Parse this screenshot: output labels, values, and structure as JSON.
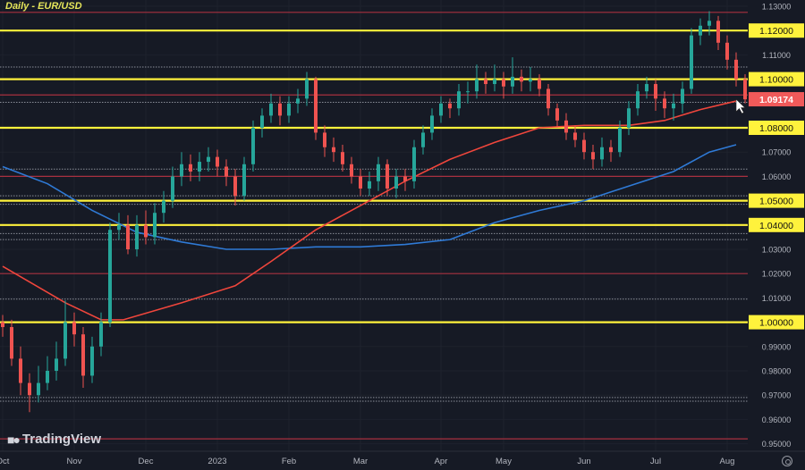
{
  "title": "Daily - EUR/USD",
  "branding": "TradingView",
  "colors": {
    "background": "#161a25",
    "up": "#26a69a",
    "down": "#ef5350",
    "support": "#fff23c",
    "resistance_red": "#a8303f",
    "ma_red": "#f0463c",
    "ma_blue": "#2f7ad6",
    "dotted": "#8b8f99",
    "last_price_bg": "#f05a5a"
  },
  "chart_data": {
    "type": "candlestick",
    "symbol": "EUR/USD",
    "timeframe": "Daily",
    "ylim": [
      0.948,
      1.132
    ],
    "y_ticks": [
      "1.13000",
      "1.12000",
      "1.11000",
      "1.10000",
      "1.08000",
      "1.07000",
      "1.06000",
      "1.05000",
      "1.04000",
      "1.03000",
      "1.02000",
      "1.01000",
      "1.00000",
      "0.99000",
      "0.98000",
      "0.97000",
      "0.96000",
      "0.95000"
    ],
    "x_labels": [
      {
        "label": "Oct",
        "index": 0
      },
      {
        "label": "Nov",
        "index": 8
      },
      {
        "label": "Dec",
        "index": 16
      },
      {
        "label": "2023",
        "index": 24
      },
      {
        "label": "Feb",
        "index": 32
      },
      {
        "label": "Mar",
        "index": 40
      },
      {
        "label": "Apr",
        "index": 49
      },
      {
        "label": "May",
        "index": 56
      },
      {
        "label": "Jun",
        "index": 65
      },
      {
        "label": "Jul",
        "index": 73
      },
      {
        "label": "Aug",
        "index": 81
      }
    ],
    "last_price": "1.09174",
    "yellow_levels": [
      1.12,
      1.1,
      1.08,
      1.05,
      1.04,
      1.0
    ],
    "red_levels": [
      1.1275,
      1.0935,
      1.06,
      1.02,
      0.952
    ],
    "dotted_levels": [
      1.105,
      1.0905,
      1.063,
      1.052,
      1.0485,
      1.0365,
      1.034,
      1.0095,
      0.969,
      0.9675
    ],
    "ohlc": [
      [
        1.0,
        1.003,
        0.994,
        0.998
      ],
      [
        0.998,
        1.001,
        0.982,
        0.985
      ],
      [
        0.985,
        0.99,
        0.97,
        0.975
      ],
      [
        0.975,
        0.979,
        0.963,
        0.97
      ],
      [
        0.97,
        0.982,
        0.967,
        0.975
      ],
      [
        0.975,
        0.986,
        0.972,
        0.98
      ],
      [
        0.98,
        0.992,
        0.976,
        0.985
      ],
      [
        0.985,
        1.009,
        0.982,
        1.0
      ],
      [
        1.0,
        1.004,
        0.99,
        0.995
      ],
      [
        0.995,
        0.998,
        0.973,
        0.978
      ],
      [
        0.978,
        0.994,
        0.975,
        0.99
      ],
      [
        0.99,
        1.004,
        0.986,
        1.0
      ],
      [
        1.0,
        1.041,
        0.998,
        1.038
      ],
      [
        1.038,
        1.045,
        1.034,
        1.04
      ],
      [
        1.04,
        1.044,
        1.028,
        1.03
      ],
      [
        1.03,
        1.044,
        1.027,
        1.04
      ],
      [
        1.04,
        1.046,
        1.032,
        1.035
      ],
      [
        1.035,
        1.049,
        1.032,
        1.045
      ],
      [
        1.045,
        1.054,
        1.041,
        1.05
      ],
      [
        1.05,
        1.064,
        1.047,
        1.06
      ],
      [
        1.06,
        1.07,
        1.056,
        1.065
      ],
      [
        1.065,
        1.069,
        1.058,
        1.062
      ],
      [
        1.062,
        1.07,
        1.058,
        1.066
      ],
      [
        1.066,
        1.072,
        1.062,
        1.068
      ],
      [
        1.068,
        1.071,
        1.06,
        1.064
      ],
      [
        1.064,
        1.067,
        1.056,
        1.06
      ],
      [
        1.06,
        1.063,
        1.048,
        1.052
      ],
      [
        1.052,
        1.068,
        1.05,
        1.065
      ],
      [
        1.065,
        1.083,
        1.062,
        1.08
      ],
      [
        1.08,
        1.088,
        1.076,
        1.085
      ],
      [
        1.085,
        1.094,
        1.082,
        1.09
      ],
      [
        1.09,
        1.093,
        1.081,
        1.085
      ],
      [
        1.085,
        1.093,
        1.082,
        1.09
      ],
      [
        1.09,
        1.096,
        1.086,
        1.092
      ],
      [
        1.092,
        1.103,
        1.089,
        1.1
      ],
      [
        1.1,
        1.101,
        1.075,
        1.078
      ],
      [
        1.078,
        1.081,
        1.068,
        1.072
      ],
      [
        1.072,
        1.076,
        1.066,
        1.07
      ],
      [
        1.07,
        1.073,
        1.062,
        1.065
      ],
      [
        1.065,
        1.068,
        1.057,
        1.06
      ],
      [
        1.06,
        1.063,
        1.052,
        1.055
      ],
      [
        1.055,
        1.062,
        1.052,
        1.058
      ],
      [
        1.058,
        1.068,
        1.054,
        1.065
      ],
      [
        1.065,
        1.067,
        1.052,
        1.055
      ],
      [
        1.055,
        1.063,
        1.051,
        1.06
      ],
      [
        1.06,
        1.063,
        1.054,
        1.058
      ],
      [
        1.058,
        1.075,
        1.055,
        1.072
      ],
      [
        1.072,
        1.081,
        1.069,
        1.078
      ],
      [
        1.078,
        1.088,
        1.075,
        1.085
      ],
      [
        1.085,
        1.093,
        1.082,
        1.09
      ],
      [
        1.09,
        1.092,
        1.084,
        1.088
      ],
      [
        1.088,
        1.098,
        1.085,
        1.095
      ],
      [
        1.095,
        1.099,
        1.09,
        1.095
      ],
      [
        1.095,
        1.106,
        1.092,
        1.1
      ],
      [
        1.1,
        1.103,
        1.094,
        1.098
      ],
      [
        1.098,
        1.106,
        1.095,
        1.1
      ],
      [
        1.1,
        1.103,
        1.092,
        1.097
      ],
      [
        1.097,
        1.109,
        1.094,
        1.101
      ],
      [
        1.101,
        1.104,
        1.095,
        1.099
      ],
      [
        1.099,
        1.105,
        1.095,
        1.1
      ],
      [
        1.1,
        1.102,
        1.093,
        1.096
      ],
      [
        1.096,
        1.098,
        1.085,
        1.088
      ],
      [
        1.088,
        1.09,
        1.08,
        1.083
      ],
      [
        1.083,
        1.086,
        1.075,
        1.078
      ],
      [
        1.078,
        1.081,
        1.072,
        1.075
      ],
      [
        1.075,
        1.078,
        1.067,
        1.07
      ],
      [
        1.07,
        1.073,
        1.063,
        1.067
      ],
      [
        1.067,
        1.076,
        1.064,
        1.072
      ],
      [
        1.072,
        1.075,
        1.066,
        1.07
      ],
      [
        1.07,
        1.083,
        1.068,
        1.08
      ],
      [
        1.08,
        1.091,
        1.077,
        1.088
      ],
      [
        1.088,
        1.098,
        1.085,
        1.095
      ],
      [
        1.095,
        1.101,
        1.092,
        1.098
      ],
      [
        1.098,
        1.1,
        1.087,
        1.092
      ],
      [
        1.092,
        1.095,
        1.084,
        1.088
      ],
      [
        1.088,
        1.094,
        1.083,
        1.09
      ],
      [
        1.09,
        1.099,
        1.086,
        1.096
      ],
      [
        1.096,
        1.121,
        1.094,
        1.118
      ],
      [
        1.118,
        1.125,
        1.114,
        1.122
      ],
      [
        1.122,
        1.128,
        1.118,
        1.124
      ],
      [
        1.124,
        1.126,
        1.112,
        1.115
      ],
      [
        1.115,
        1.118,
        1.104,
        1.108
      ],
      [
        1.108,
        1.111,
        1.097,
        1.1
      ],
      [
        1.1,
        1.102,
        1.09,
        1.0917
      ]
    ],
    "ma_red": [
      [
        0,
        1.023
      ],
      [
        7,
        1.008
      ],
      [
        11,
        1.001
      ],
      [
        13.5,
        1.001
      ],
      [
        20,
        1.008
      ],
      [
        26,
        1.015
      ],
      [
        30,
        1.025
      ],
      [
        35,
        1.038
      ],
      [
        40,
        1.048
      ],
      [
        45,
        1.058
      ],
      [
        50,
        1.067
      ],
      [
        55,
        1.074
      ],
      [
        60,
        1.08
      ],
      [
        65,
        1.081
      ],
      [
        70,
        1.081
      ],
      [
        74,
        1.083
      ],
      [
        78,
        1.0875
      ],
      [
        82,
        1.091
      ]
    ],
    "ma_blue": [
      [
        0,
        1.064
      ],
      [
        5,
        1.057
      ],
      [
        10,
        1.046
      ],
      [
        15,
        1.037
      ],
      [
        20,
        1.033
      ],
      [
        25,
        1.03
      ],
      [
        30,
        1.03
      ],
      [
        35,
        1.031
      ],
      [
        40,
        1.031
      ],
      [
        45,
        1.032
      ],
      [
        50,
        1.034
      ],
      [
        55,
        1.041
      ],
      [
        60,
        1.046
      ],
      [
        65,
        1.05
      ],
      [
        70,
        1.056
      ],
      [
        75,
        1.062
      ],
      [
        79,
        1.07
      ],
      [
        82,
        1.073
      ]
    ]
  }
}
